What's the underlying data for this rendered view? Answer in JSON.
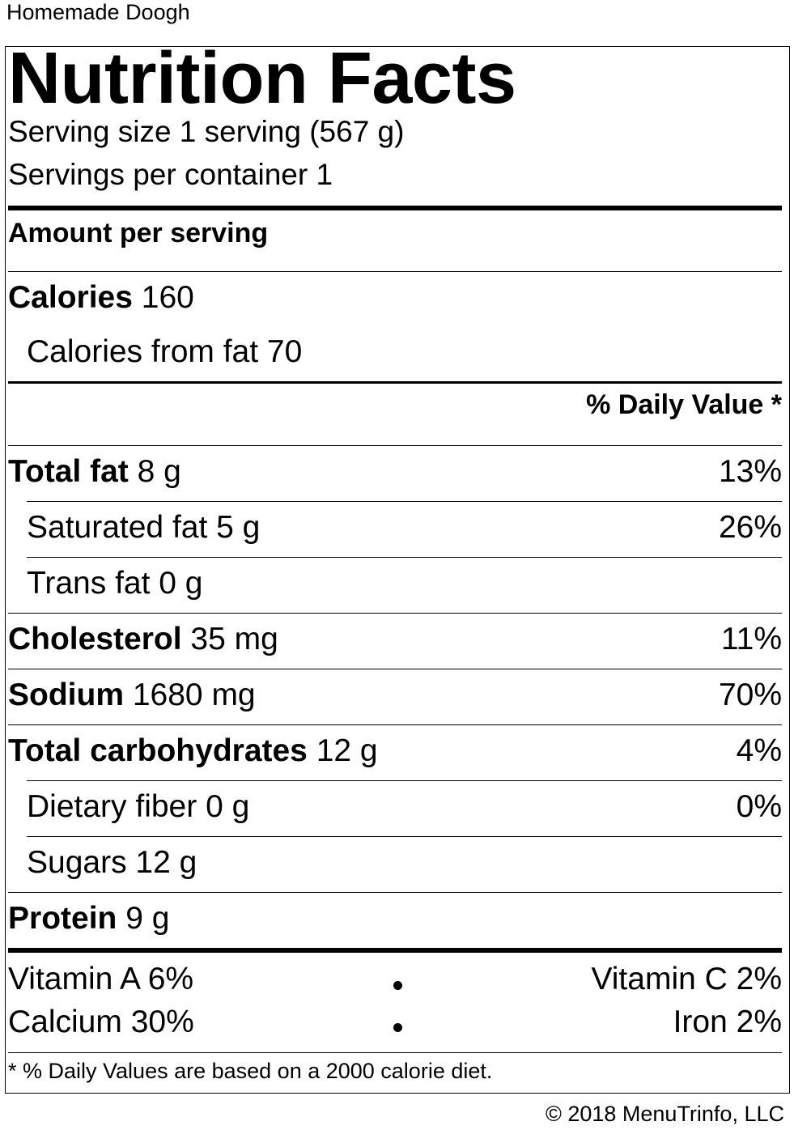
{
  "product_name": "Homemade Doogh",
  "title": "Nutrition Facts",
  "serving_size": "Serving size 1 serving (567 g)",
  "servings_per_container": "Servings per container 1",
  "amount_per_serving": "Amount per serving",
  "calories": {
    "label": "Calories",
    "value": "160"
  },
  "calories_from_fat": "Calories from fat 70",
  "daily_value_header": "% Daily Value *",
  "nutrients": {
    "total_fat": {
      "label": "Total fat",
      "amount": "8 g",
      "dv": "13%"
    },
    "saturated_fat": {
      "label": "Saturated fat 5 g",
      "dv": "26%"
    },
    "trans_fat": {
      "label": "Trans fat 0 g",
      "dv": ""
    },
    "cholesterol": {
      "label": "Cholesterol",
      "amount": "35 mg",
      "dv": "11%"
    },
    "sodium": {
      "label": "Sodium",
      "amount": "1680 mg",
      "dv": "70%"
    },
    "total_carbohydrates": {
      "label": "Total carbohydrates",
      "amount": "12 g",
      "dv": "4%"
    },
    "dietary_fiber": {
      "label": "Dietary fiber 0 g",
      "dv": "0%"
    },
    "sugars": {
      "label": "Sugars 12 g",
      "dv": ""
    },
    "protein": {
      "label": "Protein",
      "amount": "9 g"
    }
  },
  "vitamins": {
    "vitamin_a": "Vitamin A 6%",
    "vitamin_c": "Vitamin C 2%",
    "calcium": "Calcium 30%",
    "iron": "Iron 2%"
  },
  "footnote": "* % Daily Values are based on a 2000 calorie diet.",
  "copyright": "© 2018 MenuTrinfo, LLC"
}
